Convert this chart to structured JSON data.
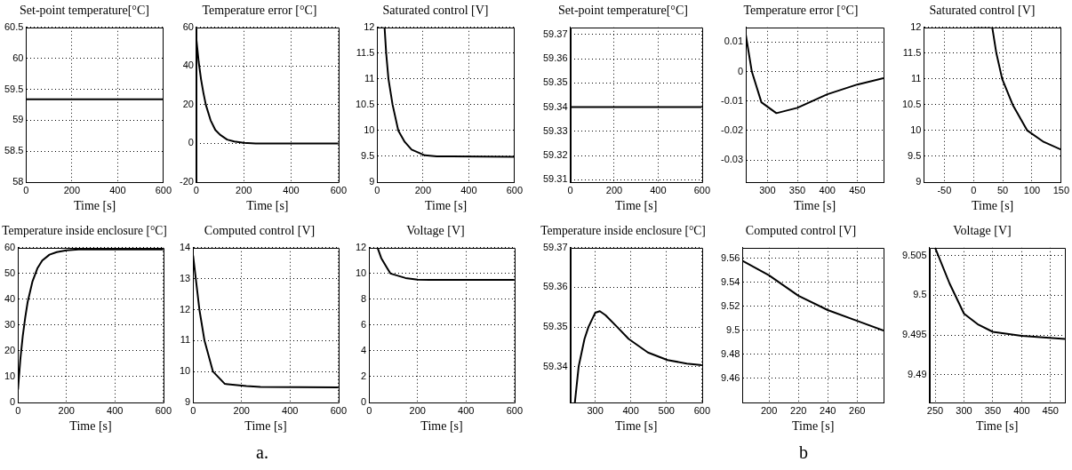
{
  "chart_data": [
    {
      "type": "line",
      "title": "Set-point temperature[°C]",
      "xlabel": "Time [s]",
      "xlim": [
        0,
        600
      ],
      "xticks": [
        0,
        200,
        400,
        600
      ],
      "ylim": [
        58,
        60.5
      ],
      "yticks": [
        58,
        58.5,
        59,
        59.5,
        60,
        60.5
      ],
      "grid": true,
      "series": [
        {
          "color": "#000000",
          "x": [
            0,
            600
          ],
          "values": [
            59.34,
            59.34
          ]
        }
      ]
    },
    {
      "type": "line",
      "title": "Temperature error [°C]",
      "xlabel": "Time [s]",
      "xlim": [
        0,
        600
      ],
      "xticks": [
        0,
        200,
        400,
        600
      ],
      "ylim": [
        -20,
        60
      ],
      "yticks": [
        -20,
        0,
        20,
        40,
        60
      ],
      "grid": true,
      "series": [
        {
          "color": "#000000",
          "x": [
            0,
            10,
            20,
            30,
            40,
            60,
            80,
            100,
            130,
            160,
            200,
            250,
            600
          ],
          "values": [
            54,
            42,
            33,
            26,
            20,
            12,
            7,
            4.5,
            2,
            1,
            0.3,
            0,
            0
          ]
        }
      ]
    },
    {
      "type": "line",
      "title": "Saturated control [V]",
      "xlabel": "Time [s]",
      "xlim": [
        0,
        600
      ],
      "xticks": [
        0,
        200,
        400,
        600
      ],
      "ylim": [
        9,
        12
      ],
      "yticks": [
        9,
        9.5,
        10,
        10.5,
        11,
        11.5,
        12
      ],
      "grid": true,
      "series": [
        {
          "color": "#000000",
          "x": [
            0,
            32,
            39,
            49,
            67,
            92,
            120,
            150,
            208,
            260,
            600
          ],
          "values": [
            12,
            12,
            11.5,
            11,
            10.5,
            10,
            9.78,
            9.63,
            9.52,
            9.5,
            9.49
          ]
        }
      ]
    },
    {
      "type": "line",
      "title": "Temperature inside enclosure [°C]",
      "xlabel": "Time [s]",
      "xlim": [
        0,
        600
      ],
      "xticks": [
        0,
        200,
        400,
        600
      ],
      "ylim": [
        0,
        60
      ],
      "yticks": [
        0,
        10,
        20,
        30,
        40,
        50,
        60
      ],
      "grid": true,
      "series": [
        {
          "color": "#000000",
          "x": [
            0,
            10,
            20,
            30,
            40,
            60,
            80,
            100,
            130,
            160,
            200,
            250,
            600
          ],
          "values": [
            5,
            17,
            26,
            33,
            39,
            47,
            52,
            55,
            57.3,
            58.3,
            59,
            59.3,
            59.3
          ]
        }
      ]
    },
    {
      "type": "line",
      "title": "Computed control [V]",
      "xlabel": "Time [s]",
      "xlim": [
        0,
        600
      ],
      "xticks": [
        0,
        200,
        400,
        600
      ],
      "ylim": [
        9,
        14
      ],
      "yticks": [
        9,
        10,
        11,
        12,
        13,
        14
      ],
      "grid": true,
      "annotations": [
        "a."
      ],
      "series": [
        {
          "color": "#000000",
          "x": [
            0,
            26,
            47,
            82,
            131,
            182,
            220,
            278,
            600
          ],
          "values": [
            13.75,
            12,
            11,
            10,
            9.6,
            9.56,
            9.53,
            9.5,
            9.49
          ]
        }
      ]
    },
    {
      "type": "line",
      "title": "Voltage [V]",
      "xlabel": "Time [s]",
      "xlim": [
        0,
        600
      ],
      "xticks": [
        0,
        200,
        400,
        600
      ],
      "ylim": [
        0,
        12
      ],
      "yticks": [
        0,
        2,
        4,
        6,
        8,
        10,
        12
      ],
      "grid": true,
      "series": [
        {
          "color": "#000000",
          "x": [
            35,
            50,
            75,
            88,
            150,
            200,
            250,
            300,
            600
          ],
          "values": [
            12,
            11.2,
            10.4,
            10,
            9.65,
            9.53,
            9.5,
            9.5,
            9.5
          ]
        }
      ]
    },
    {
      "type": "line",
      "title": "Set-point temperature[°C]",
      "xlabel": "Time [s]",
      "xlim": [
        0,
        600
      ],
      "xticks": [
        0,
        200,
        400,
        600
      ],
      "ylim": [
        59.309,
        59.373
      ],
      "yticks": [
        59.31,
        59.32,
        59.33,
        59.34,
        59.35,
        59.36,
        59.37
      ],
      "grid": true,
      "series": [
        {
          "color": "#000000",
          "line_style": "solid",
          "x": [
            0,
            600
          ],
          "values": [
            59.34,
            59.34
          ]
        }
      ]
    },
    {
      "type": "line",
      "title": "Temperature error [°C]",
      "xlabel": "Time [s]",
      "xlim": [
        264,
        494
      ],
      "xticks": [
        300,
        350,
        400,
        450
      ],
      "ylim": [
        -0.0375,
        0.015
      ],
      "yticks": [
        -0.03,
        -0.02,
        -0.01,
        0,
        0.01
      ],
      "grid": true,
      "series": [
        {
          "color": "#000000",
          "x": [
            264,
            274,
            290,
            315,
            350,
            400,
            450,
            494
          ],
          "values": [
            0.0124,
            0,
            -0.0104,
            -0.0141,
            -0.0123,
            -0.0077,
            -0.0044,
            -0.0022
          ]
        }
      ]
    },
    {
      "type": "line",
      "title": "Saturated control [V]",
      "xlabel": "Time [s]",
      "xlim": [
        -85,
        150
      ],
      "xticks": [
        -50,
        0,
        50,
        100,
        150
      ],
      "ylim": [
        9,
        12
      ],
      "yticks": [
        9,
        9.5,
        10,
        10.5,
        11,
        11.5,
        12
      ],
      "grid": true,
      "series": [
        {
          "color": "#000000",
          "x": [
            0,
            32,
            39,
            49,
            67,
            92,
            120,
            150
          ],
          "values": [
            12,
            12,
            11.5,
            11,
            10.5,
            10,
            9.78,
            9.63
          ]
        }
      ]
    },
    {
      "type": "line",
      "title": "Temperature inside enclosure [°C]",
      "xlabel": "Time [s]",
      "xlim": [
        230,
        600
      ],
      "xticks": [
        300,
        400,
        500,
        600
      ],
      "ylim": [
        59.331,
        59.37
      ],
      "yticks": [
        59.34,
        59.35,
        59.36,
        59.37
      ],
      "grid": true,
      "series": [
        {
          "color": "#000000",
          "x": [
            243,
            253.5,
            270,
            281,
            300,
            313,
            329,
            362,
            394,
            448,
            503,
            557,
            600
          ],
          "values": [
            59.331,
            59.34,
            59.347,
            59.35,
            59.3536,
            59.354,
            59.353,
            59.35,
            59.347,
            59.3436,
            59.3417,
            59.3408,
            59.3404
          ]
        }
      ]
    },
    {
      "type": "line",
      "title": "Computed control [V]",
      "xlabel": "Time [s]",
      "xlim": [
        182,
        278
      ],
      "xticks": [
        200,
        220,
        240,
        260
      ],
      "ylim": [
        9.44,
        9.569
      ],
      "yticks": [
        9.46,
        9.48,
        9.5,
        9.52,
        9.54,
        9.56
      ],
      "grid": true,
      "annotations": [
        "b"
      ],
      "series": [
        {
          "color": "#000000",
          "x": [
            182,
            200,
            220,
            240,
            260,
            278
          ],
          "values": [
            9.558,
            9.546,
            9.529,
            9.517,
            9.508,
            9.5
          ]
        }
      ]
    },
    {
      "type": "line",
      "title": "Voltage [V]",
      "xlabel": "Time [s]",
      "xlim": [
        240,
        475
      ],
      "xticks": [
        250,
        300,
        350,
        400,
        450
      ],
      "ylim": [
        9.4865,
        9.506
      ],
      "yticks": [
        9.49,
        9.495,
        9.5,
        9.505
      ],
      "grid": true,
      "series": [
        {
          "color": "#000000",
          "x": [
            250,
            275,
            300,
            325,
            350,
            400,
            475
          ],
          "values": [
            9.506,
            9.5015,
            9.4977,
            9.4963,
            9.4954,
            9.4949,
            9.4945
          ]
        }
      ]
    }
  ]
}
